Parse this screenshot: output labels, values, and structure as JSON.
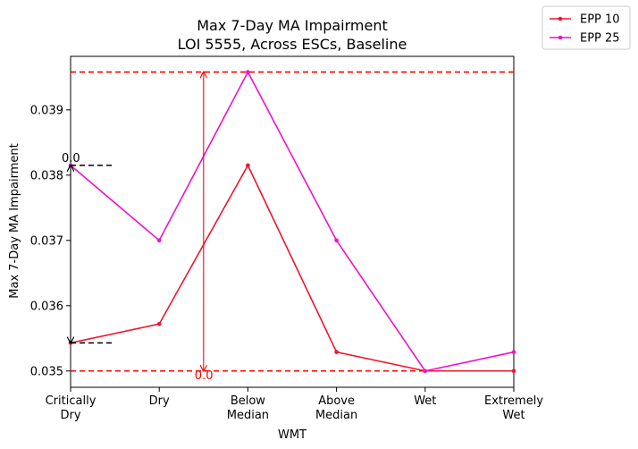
{
  "chart_data": {
    "type": "line",
    "title": "Max 7-Day MA Impairment",
    "subtitle": "LOI 5555, Across ESCs, Baseline",
    "xlabel": "WMT",
    "ylabel": "Max 7-Day MA Impairment",
    "categories": [
      [
        "Critically",
        "Dry"
      ],
      [
        "Dry"
      ],
      [
        "Below",
        "Median"
      ],
      [
        "Above",
        "Median"
      ],
      [
        "Wet"
      ],
      [
        "Extremely",
        "Wet"
      ]
    ],
    "ylim": [
      0.03475,
      0.03982
    ],
    "yticks": [
      0.035,
      0.036,
      0.037,
      0.038,
      0.039
    ],
    "ytick_labels": [
      "0.035",
      "0.036",
      "0.037",
      "0.038",
      "0.039"
    ],
    "series": [
      {
        "name": "EPP 10",
        "color": "#f0142d",
        "values": [
          0.03543,
          0.03572,
          0.03815,
          0.03529,
          0.035,
          0.035
        ]
      },
      {
        "name": "EPP 25",
        "color": "#f011c8",
        "values": [
          0.03815,
          0.037,
          0.03958,
          0.037,
          0.035,
          0.03529
        ]
      }
    ],
    "reference_lines": {
      "color": "#ff0000",
      "y_min": 0.035,
      "y_max": 0.03958
    },
    "annotations": [
      {
        "kind": "range-arrow",
        "color": "#000000",
        "x_index": 0,
        "from": 0.03543,
        "to": 0.03815,
        "label": "0.0"
      },
      {
        "kind": "range-arrow",
        "color": "#ff0000",
        "x_index": 1.5,
        "from": 0.035,
        "to": 0.03958,
        "label": "0.0"
      }
    ],
    "grid": false,
    "legend_position": "top-right (outside)"
  }
}
